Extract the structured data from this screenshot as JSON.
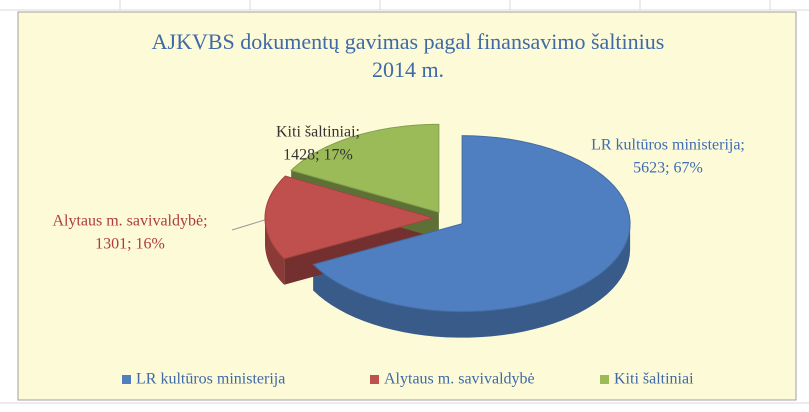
{
  "chart_data": {
    "type": "pie3d",
    "title": "AJKVBS dokumentų gavimas pagal finansavimo šaltinius",
    "subtitle": "2014 m.",
    "categories": [
      "LR kultūros ministerija",
      "Alytaus m. savivaldybė",
      "Kiti šaltiniai"
    ],
    "values": [
      5623,
      1301,
      1428
    ],
    "value_labels": [
      [
        "LR kultūros ministerija;",
        "5623; 67%"
      ],
      [
        "Alytaus m. savivaldybė;",
        "1301; 16%"
      ],
      [
        "Kiti šaltiniai;",
        "1428; 17%"
      ]
    ],
    "colors": [
      "#4f7fc0",
      "#c0504d",
      "#9bbb59"
    ],
    "legend": "bottom"
  }
}
